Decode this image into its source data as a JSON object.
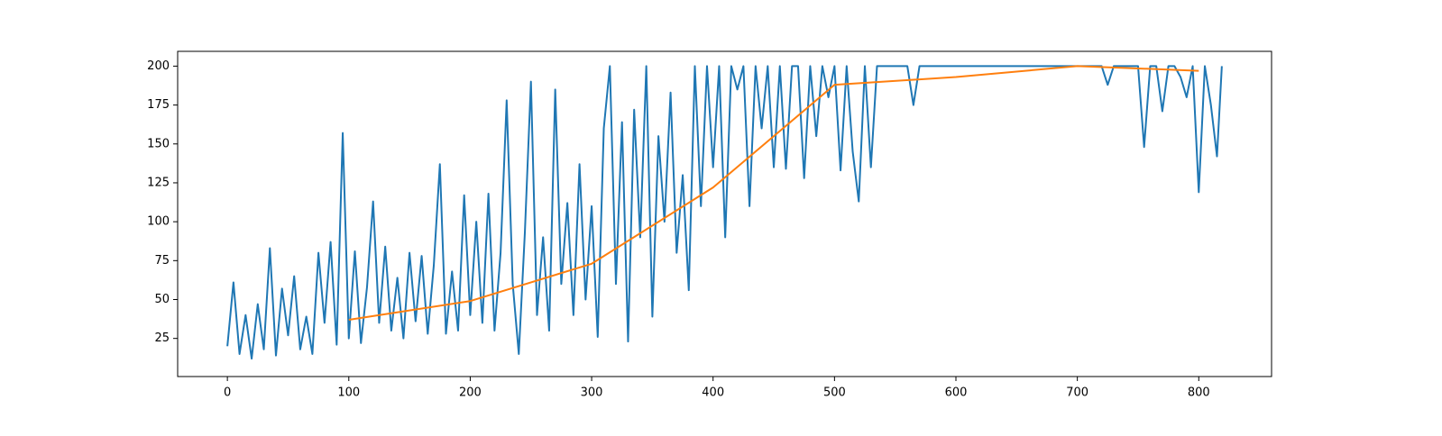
{
  "chart_data": {
    "type": "line",
    "xlim": [
      -40.95,
      859.95
    ],
    "ylim": [
      0.5,
      209.5
    ],
    "xticks": [
      0,
      100,
      200,
      300,
      400,
      500,
      600,
      700,
      800
    ],
    "yticks": [
      25,
      50,
      75,
      100,
      125,
      150,
      175,
      200
    ],
    "grid": false,
    "series": [
      {
        "color": "#1f77b4",
        "x": [
          0,
          5,
          10,
          15,
          20,
          25,
          30,
          35,
          40,
          45,
          50,
          55,
          60,
          65,
          70,
          75,
          80,
          85,
          90,
          95,
          100,
          105,
          110,
          115,
          120,
          125,
          130,
          135,
          140,
          145,
          150,
          155,
          160,
          165,
          170,
          175,
          180,
          185,
          190,
          195,
          200,
          205,
          210,
          215,
          220,
          225,
          230,
          235,
          240,
          245,
          250,
          255,
          260,
          265,
          270,
          275,
          280,
          285,
          290,
          295,
          300,
          305,
          310,
          315,
          320,
          325,
          330,
          335,
          340,
          345,
          350,
          355,
          360,
          365,
          370,
          375,
          380,
          385,
          390,
          395,
          400,
          405,
          410,
          415,
          420,
          425,
          430,
          435,
          440,
          445,
          450,
          455,
          460,
          465,
          470,
          475,
          480,
          485,
          490,
          495,
          500,
          505,
          510,
          515,
          520,
          525,
          530,
          535,
          540,
          545,
          550,
          555,
          560,
          565,
          570,
          575,
          580,
          585,
          590,
          595,
          600,
          605,
          610,
          615,
          620,
          625,
          630,
          635,
          640,
          645,
          650,
          655,
          660,
          665,
          670,
          675,
          680,
          685,
          690,
          695,
          700,
          705,
          710,
          715,
          720,
          725,
          730,
          735,
          740,
          745,
          750,
          755,
          760,
          765,
          770,
          775,
          780,
          785,
          790,
          795,
          800,
          805,
          810,
          815,
          819
        ],
        "values": [
          20,
          61,
          15,
          40,
          12,
          47,
          18,
          83,
          14,
          57,
          27,
          65,
          18,
          39,
          15,
          80,
          35,
          87,
          21,
          157,
          25,
          81,
          22,
          58,
          113,
          35,
          84,
          30,
          64,
          25,
          80,
          36,
          78,
          28,
          72,
          137,
          28,
          68,
          30,
          117,
          40,
          100,
          35,
          118,
          30,
          80,
          178,
          60,
          15,
          93,
          190,
          40,
          90,
          30,
          185,
          60,
          112,
          40,
          137,
          50,
          110,
          26,
          160,
          200,
          60,
          164,
          23,
          172,
          90,
          200,
          39,
          155,
          100,
          183,
          80,
          130,
          56,
          200,
          110,
          200,
          135,
          200,
          90,
          200,
          185,
          200,
          110,
          200,
          160,
          200,
          135,
          200,
          134,
          200,
          200,
          128,
          200,
          155,
          200,
          180,
          200,
          133,
          200,
          145,
          113,
          200,
          135,
          200,
          200,
          200,
          200,
          200,
          200,
          175,
          200,
          200,
          200,
          200,
          200,
          200,
          200,
          200,
          200,
          200,
          200,
          200,
          200,
          200,
          200,
          200,
          200,
          200,
          200,
          200,
          200,
          200,
          200,
          200,
          200,
          200,
          200,
          200,
          200,
          200,
          200,
          188,
          200,
          200,
          200,
          200,
          200,
          148,
          200,
          200,
          171,
          200,
          200,
          193,
          180,
          200,
          119,
          200,
          175,
          142,
          200
        ]
      },
      {
        "color": "#ff7f0e",
        "x": [
          100,
          200,
          300,
          400,
          500,
          600,
          700,
          800
        ],
        "values": [
          37,
          49,
          73,
          122,
          188,
          193,
          200,
          197
        ]
      }
    ]
  }
}
